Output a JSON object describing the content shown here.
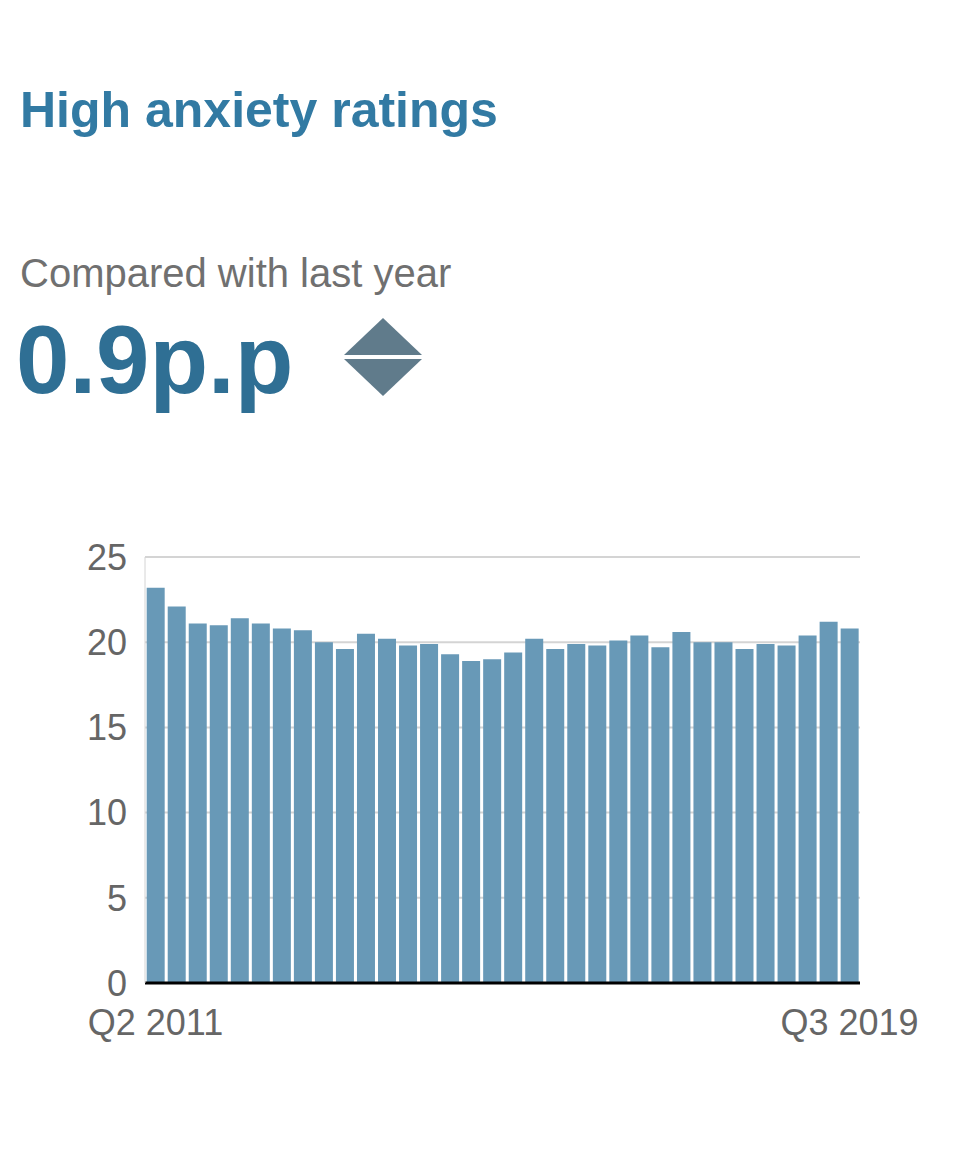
{
  "chart_data": {
    "type": "bar",
    "title": "High anxiety ratings",
    "subtitle": "Compared with last year",
    "annotation": "0.9p.p",
    "categories": [
      "Q2 2011",
      null,
      null,
      null,
      null,
      null,
      null,
      null,
      null,
      null,
      null,
      null,
      null,
      null,
      null,
      null,
      null,
      null,
      null,
      null,
      null,
      null,
      null,
      null,
      null,
      null,
      null,
      null,
      null,
      null,
      null,
      null,
      null,
      "Q3 2019"
    ],
    "values": [
      23.2,
      22.1,
      21.1,
      21.0,
      21.4,
      21.1,
      20.8,
      20.7,
      20.0,
      19.6,
      20.5,
      20.2,
      19.8,
      19.9,
      19.3,
      18.9,
      19.0,
      19.4,
      20.2,
      19.6,
      19.9,
      19.8,
      20.1,
      20.4,
      19.7,
      20.6,
      20.0,
      20.0,
      19.6,
      19.9,
      19.8,
      20.4,
      21.2,
      20.8
    ],
    "color": "#6899b7",
    "ylim": [
      0,
      25
    ],
    "yticks": [
      0,
      5,
      10,
      15,
      20,
      25
    ],
    "grid": true
  }
}
